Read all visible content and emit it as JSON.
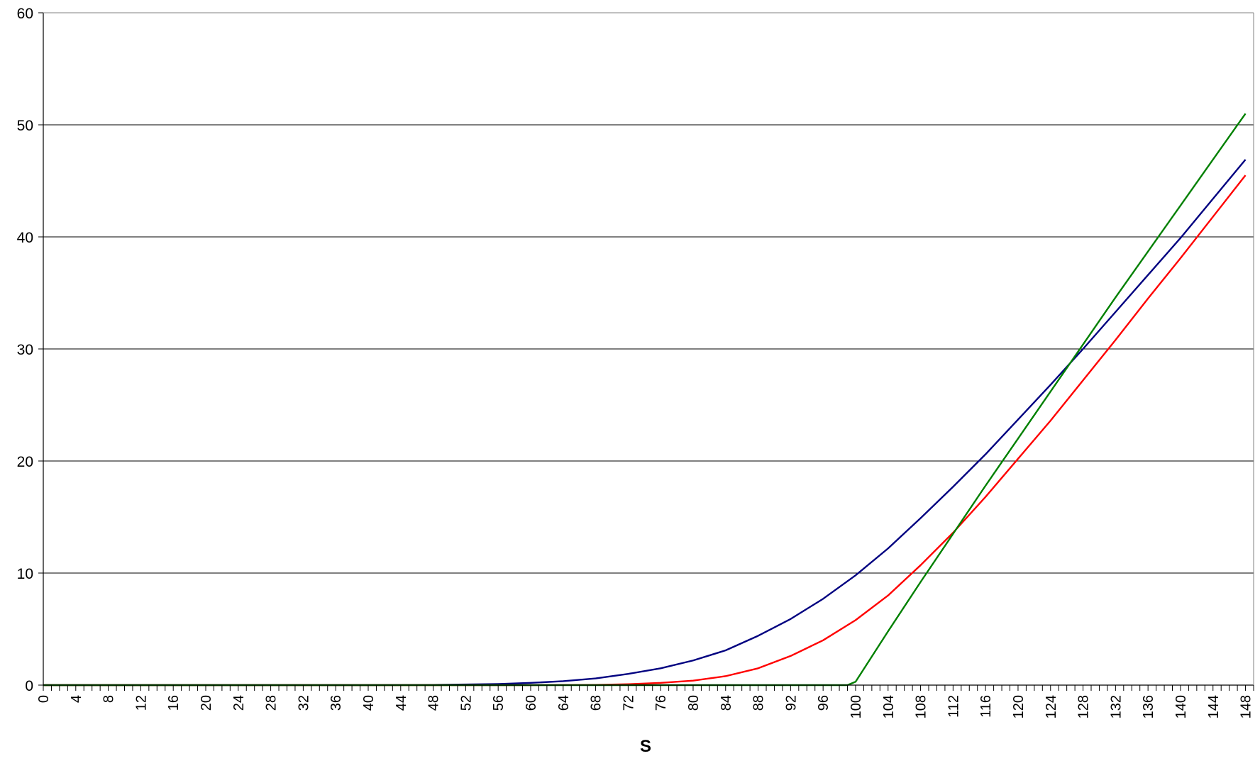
{
  "chart_data": {
    "type": "line",
    "title": "",
    "xlabel": "S",
    "ylabel": "",
    "xlim": [
      0,
      149
    ],
    "ylim": [
      0,
      60
    ],
    "y_ticks": [
      0,
      10,
      20,
      30,
      40,
      50,
      60
    ],
    "x_tick_labels": [
      0,
      4,
      8,
      12,
      16,
      20,
      24,
      28,
      32,
      36,
      40,
      44,
      48,
      52,
      56,
      60,
      64,
      68,
      72,
      76,
      80,
      84,
      88,
      92,
      96,
      100,
      104,
      108,
      112,
      116,
      120,
      124,
      128,
      132,
      136,
      140,
      144,
      148
    ],
    "x_minor_tick_step": 1,
    "grid": "horizontal major lines",
    "legend": "none",
    "series": [
      {
        "color": "#000080",
        "x": [
          0,
          40,
          48,
          52,
          56,
          60,
          64,
          68,
          72,
          76,
          80,
          84,
          88,
          92,
          96,
          100,
          104,
          108,
          112,
          116,
          120,
          124,
          128,
          132,
          136,
          140,
          144,
          148
        ],
        "y": [
          0,
          0,
          0.02,
          0.06,
          0.1,
          0.2,
          0.35,
          0.6,
          1.0,
          1.5,
          2.2,
          3.1,
          4.4,
          5.9,
          7.7,
          9.8,
          12.2,
          14.9,
          17.7,
          20.6,
          23.7,
          26.8,
          30.0,
          33.3,
          36.6,
          39.9,
          43.4,
          46.9
        ]
      },
      {
        "color": "#ff0000",
        "x": [
          0,
          60,
          68,
          72,
          76,
          80,
          84,
          88,
          92,
          96,
          100,
          104,
          108,
          112,
          116,
          120,
          124,
          128,
          132,
          136,
          140,
          144,
          148
        ],
        "y": [
          0,
          0,
          0.02,
          0.08,
          0.2,
          0.4,
          0.8,
          1.5,
          2.6,
          4.0,
          5.8,
          8.0,
          10.7,
          13.6,
          16.8,
          20.2,
          23.6,
          27.2,
          30.8,
          34.5,
          38.1,
          41.8,
          45.5
        ]
      },
      {
        "color": "#008000",
        "x": [
          0,
          99,
          100,
          104,
          108,
          112,
          116,
          120,
          124,
          128,
          132,
          136,
          140,
          144,
          148
        ],
        "y": [
          0,
          0,
          0.3,
          4.8,
          9.2,
          13.5,
          17.8,
          22.0,
          26.2,
          30.4,
          34.6,
          38.7,
          42.8,
          46.9,
          51.0
        ]
      }
    ]
  }
}
